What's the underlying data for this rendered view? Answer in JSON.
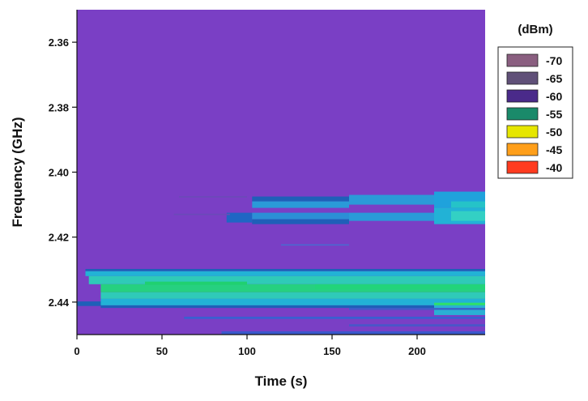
{
  "chart_data": {
    "type": "heatmap",
    "title": "",
    "xlabel": "Time (s)",
    "ylabel": "Frequency (GHz)",
    "xlim": [
      0,
      240
    ],
    "ylim": [
      2.35,
      2.45
    ],
    "y_inverted": true,
    "x_ticks": [
      0,
      50,
      100,
      150,
      200
    ],
    "x_tick_labels": [
      "0",
      "50",
      "100",
      "150",
      "200"
    ],
    "y_ticks": [
      2.36,
      2.38,
      2.4,
      2.42,
      2.44
    ],
    "y_tick_labels": [
      "2.36",
      "2.38",
      "2.40",
      "2.42",
      "2.44"
    ],
    "grid": false,
    "background_level": "-70",
    "colorbar": {
      "title": "(dBm)",
      "placement": "right",
      "levels": [
        {
          "label": "-70",
          "color": "#7a3fc5"
        },
        {
          "label": "-65",
          "color": "#5e4f8e"
        },
        {
          "label": "-60",
          "color": "#4a2a8a"
        },
        {
          "label": "-55",
          "color": "#1a7f6f"
        },
        {
          "label": "-50",
          "color": "#e6e600"
        },
        {
          "label": "-45",
          "color": "#ff9f1a"
        },
        {
          "label": "-40",
          "color": "#ff3b1f"
        }
      ],
      "legend_fill_colors": [
        "#8a5f80",
        "#605078",
        "#4a2a8a",
        "#1a8a6a",
        "#e6e600",
        "#ff9f1a",
        "#ff3b1f"
      ]
    },
    "bands": [
      {
        "t0": 103,
        "t1": 160,
        "f0": 2.4075,
        "f1": 2.409,
        "color": "#1f5fb8"
      },
      {
        "t0": 103,
        "t1": 160,
        "f0": 2.409,
        "f1": 2.411,
        "color": "#2a9ad8"
      },
      {
        "t0": 160,
        "t1": 210,
        "f0": 2.407,
        "f1": 2.41,
        "color": "#2a9ad8"
      },
      {
        "t0": 210,
        "t1": 240,
        "f0": 2.406,
        "f1": 2.411,
        "color": "#1fa2dc"
      },
      {
        "t0": 220,
        "t1": 240,
        "f0": 2.409,
        "f1": 2.411,
        "color": "#25c3c8"
      },
      {
        "t0": 60,
        "t1": 100,
        "f0": 2.4074,
        "f1": 2.4078,
        "color": "#6a4bb8"
      },
      {
        "t0": 88,
        "t1": 103,
        "f0": 2.4125,
        "f1": 2.4155,
        "color": "#1f66c4"
      },
      {
        "t0": 103,
        "t1": 160,
        "f0": 2.4125,
        "f1": 2.4145,
        "color": "#2b8fd6"
      },
      {
        "t0": 103,
        "t1": 160,
        "f0": 2.4145,
        "f1": 2.416,
        "color": "#1f5fb8"
      },
      {
        "t0": 160,
        "t1": 210,
        "f0": 2.4125,
        "f1": 2.415,
        "color": "#2a9ad8"
      },
      {
        "t0": 210,
        "t1": 240,
        "f0": 2.411,
        "f1": 2.416,
        "color": "#22b2d6"
      },
      {
        "t0": 220,
        "t1": 240,
        "f0": 2.412,
        "f1": 2.415,
        "color": "#33d0c4"
      },
      {
        "t0": 57,
        "t1": 90,
        "f0": 2.4128,
        "f1": 2.4132,
        "color": "#6a4bb8"
      },
      {
        "t0": 120,
        "t1": 160,
        "f0": 2.4222,
        "f1": 2.4226,
        "color": "#4a6ad0"
      },
      {
        "t0": 5,
        "t1": 240,
        "f0": 2.4298,
        "f1": 2.4305,
        "color": "#1f5fb8"
      },
      {
        "t0": 5,
        "t1": 240,
        "f0": 2.4305,
        "f1": 2.432,
        "color": "#22b2d6"
      },
      {
        "t0": 7,
        "t1": 240,
        "f0": 2.432,
        "f1": 2.4345,
        "color": "#2fcab8"
      },
      {
        "t0": 14,
        "t1": 240,
        "f0": 2.4345,
        "f1": 2.437,
        "color": "#26d080"
      },
      {
        "t0": 14,
        "t1": 240,
        "f0": 2.437,
        "f1": 2.439,
        "color": "#2fcab8"
      },
      {
        "t0": 14,
        "t1": 240,
        "f0": 2.439,
        "f1": 2.441,
        "color": "#22b2d6"
      },
      {
        "t0": 0,
        "t1": 14,
        "f0": 2.4398,
        "f1": 2.4412,
        "color": "#1f5fb8"
      },
      {
        "t0": 14,
        "t1": 240,
        "f0": 2.441,
        "f1": 2.4418,
        "color": "#1f5fb8"
      },
      {
        "t0": 40,
        "t1": 100,
        "f0": 2.4337,
        "f1": 2.4347,
        "color": "#20d070"
      },
      {
        "t0": 140,
        "t1": 240,
        "f0": 2.4345,
        "f1": 2.436,
        "color": "#22d47a"
      },
      {
        "t0": 210,
        "t1": 240,
        "f0": 2.4402,
        "f1": 2.441,
        "color": "#2fe06a"
      },
      {
        "t0": 210,
        "t1": 240,
        "f0": 2.441,
        "f1": 2.444,
        "color": "#2ab0d4"
      },
      {
        "t0": 160,
        "t1": 240,
        "f0": 2.4418,
        "f1": 2.4424,
        "color": "#3a60c8"
      },
      {
        "t0": 63,
        "t1": 240,
        "f0": 2.4445,
        "f1": 2.4452,
        "color": "#3a5fd0"
      },
      {
        "t0": 160,
        "t1": 240,
        "f0": 2.4468,
        "f1": 2.4475,
        "color": "#4a56c8"
      },
      {
        "t0": 85,
        "t1": 240,
        "f0": 2.449,
        "f1": 2.45,
        "color": "#3a58cc"
      }
    ]
  }
}
